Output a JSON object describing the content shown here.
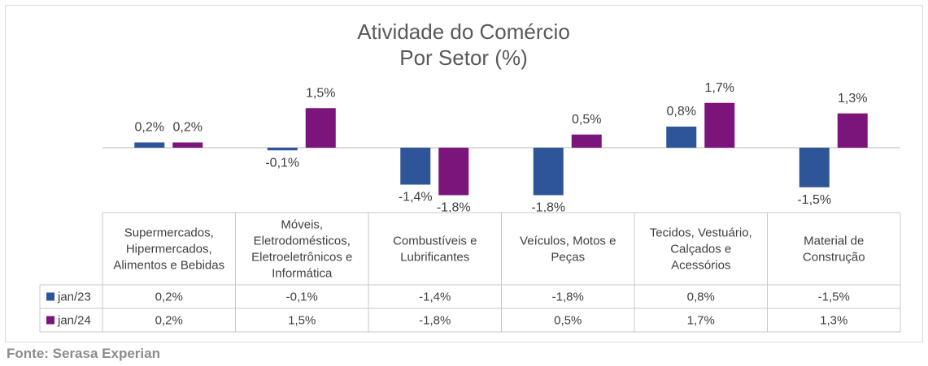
{
  "source": "Fonte: Serasa Experian",
  "chart_data": {
    "type": "bar",
    "title": [
      "Atividade do Comércio",
      "Por Setor (%)"
    ],
    "categories": [
      [
        "Supermercados,",
        "Hipermercados,",
        "Alimentos e Bebidas"
      ],
      [
        "Móveis,",
        "Eletrodomésticos,",
        "Eletroeletrônicos e",
        "Informática"
      ],
      [
        "Combustíveis e",
        "Lubrificantes"
      ],
      [
        "Veículos, Motos e",
        "Peças"
      ],
      [
        "Tecidos, Vestuário,",
        "Calçados e",
        "Acessórios"
      ],
      [
        "Material de",
        "Construção"
      ]
    ],
    "series": [
      {
        "name": "jan/23",
        "color": "#2e5597",
        "values": [
          0.2,
          -0.1,
          -1.4,
          -1.8,
          0.8,
          -1.5
        ],
        "labels": [
          "0,2%",
          "-0,1%",
          "-1,4%",
          "-1,8%",
          "0,8%",
          "-1,5%"
        ]
      },
      {
        "name": "jan/24",
        "color": "#7b147b",
        "values": [
          0.2,
          1.5,
          -1.8,
          0.5,
          1.7,
          1.3
        ],
        "labels": [
          "0,2%",
          "1,5%",
          "-1,8%",
          "0,5%",
          "1,7%",
          "1,3%"
        ]
      }
    ],
    "data_table": true,
    "legend": "data-table-left"
  }
}
